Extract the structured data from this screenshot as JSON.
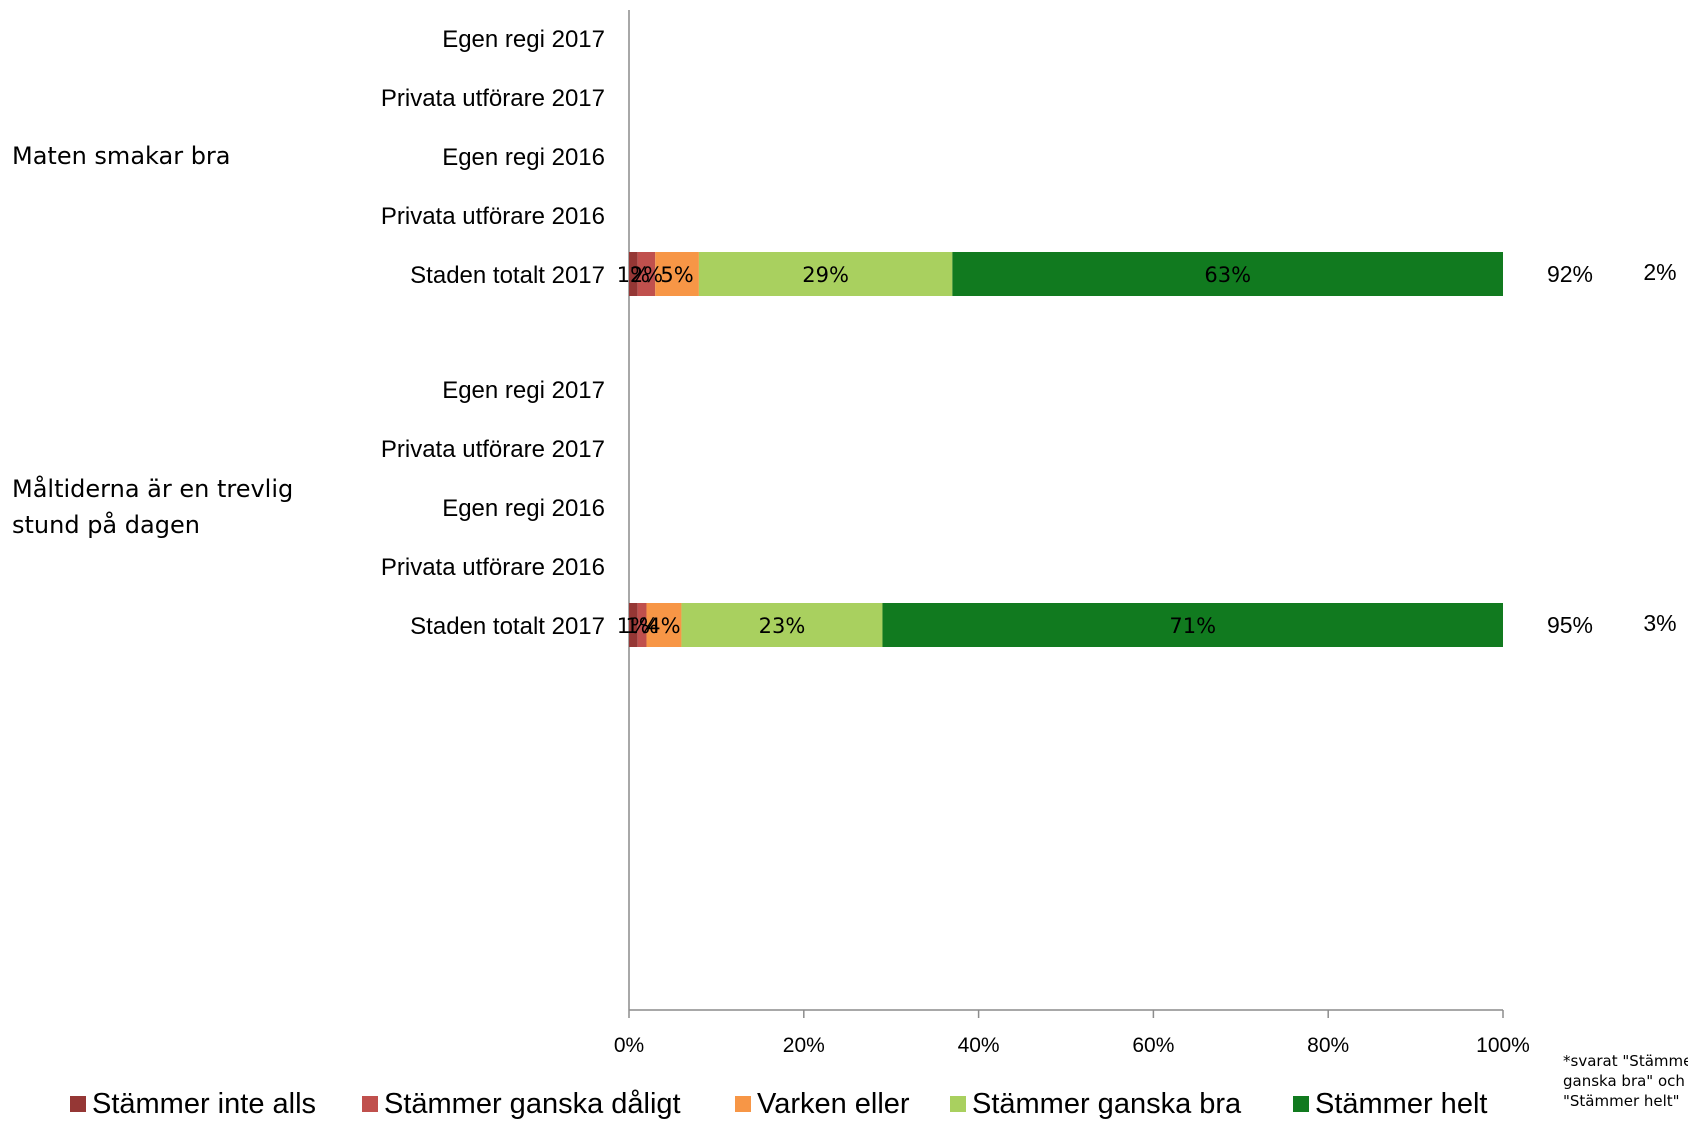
{
  "chart_data": {
    "type": "bar",
    "orientation": "horizontal",
    "stacked": "percent",
    "groups": [
      {
        "label_lines": [
          "Maten smakar bra"
        ],
        "rows": [
          {
            "label": "Egen regi 2017",
            "values": null
          },
          {
            "label": "Privata utförare 2017",
            "values": null
          },
          {
            "label": "Egen regi 2016",
            "values": null
          },
          {
            "label": "Privata utförare 2016",
            "values": null
          },
          {
            "label": "Staden totalt 2017",
            "values": [
              1,
              2,
              5,
              29,
              63
            ],
            "labels": [
              "1%",
              "2%",
              "5%",
              "29%",
              "63%"
            ],
            "agree_total": "92%",
            "extra": "2%"
          }
        ]
      },
      {
        "label_lines": [
          "Måltiderna är en trevlig",
          "stund på dagen"
        ],
        "rows": [
          {
            "label": "Egen regi 2017",
            "values": null
          },
          {
            "label": "Privata utförare 2017",
            "values": null
          },
          {
            "label": "Egen regi 2016",
            "values": null
          },
          {
            "label": "Privata utförare 2016",
            "values": null
          },
          {
            "label": "Staden totalt 2017",
            "values": [
              1,
              1,
              4,
              23,
              71
            ],
            "labels": [
              "1%",
              "1%",
              "4%",
              "23%",
              "71%"
            ],
            "agree_total": "95%",
            "extra": "3%"
          }
        ]
      }
    ],
    "series": [
      {
        "name": "Stämmer inte alls",
        "color": "#953735"
      },
      {
        "name": "Stämmer ganska dåligt",
        "color": "#c0504d"
      },
      {
        "name": "Varken eller",
        "color": "#f79646"
      },
      {
        "name": "Stämmer ganska bra",
        "color": "#a9d05f"
      },
      {
        "name": "Stämmer helt",
        "color": "#117a1f"
      }
    ],
    "xaxis": {
      "ticks": [
        0,
        20,
        40,
        60,
        80,
        100
      ],
      "tick_labels": [
        "0%",
        "20%",
        "40%",
        "60%",
        "80%",
        "100%"
      ],
      "range": [
        0,
        100
      ]
    },
    "legend_position": "bottom",
    "footnote_lines": [
      "*svarat \"Stämmer",
      "ganska bra\" och",
      "\"Stämmer helt\""
    ]
  }
}
